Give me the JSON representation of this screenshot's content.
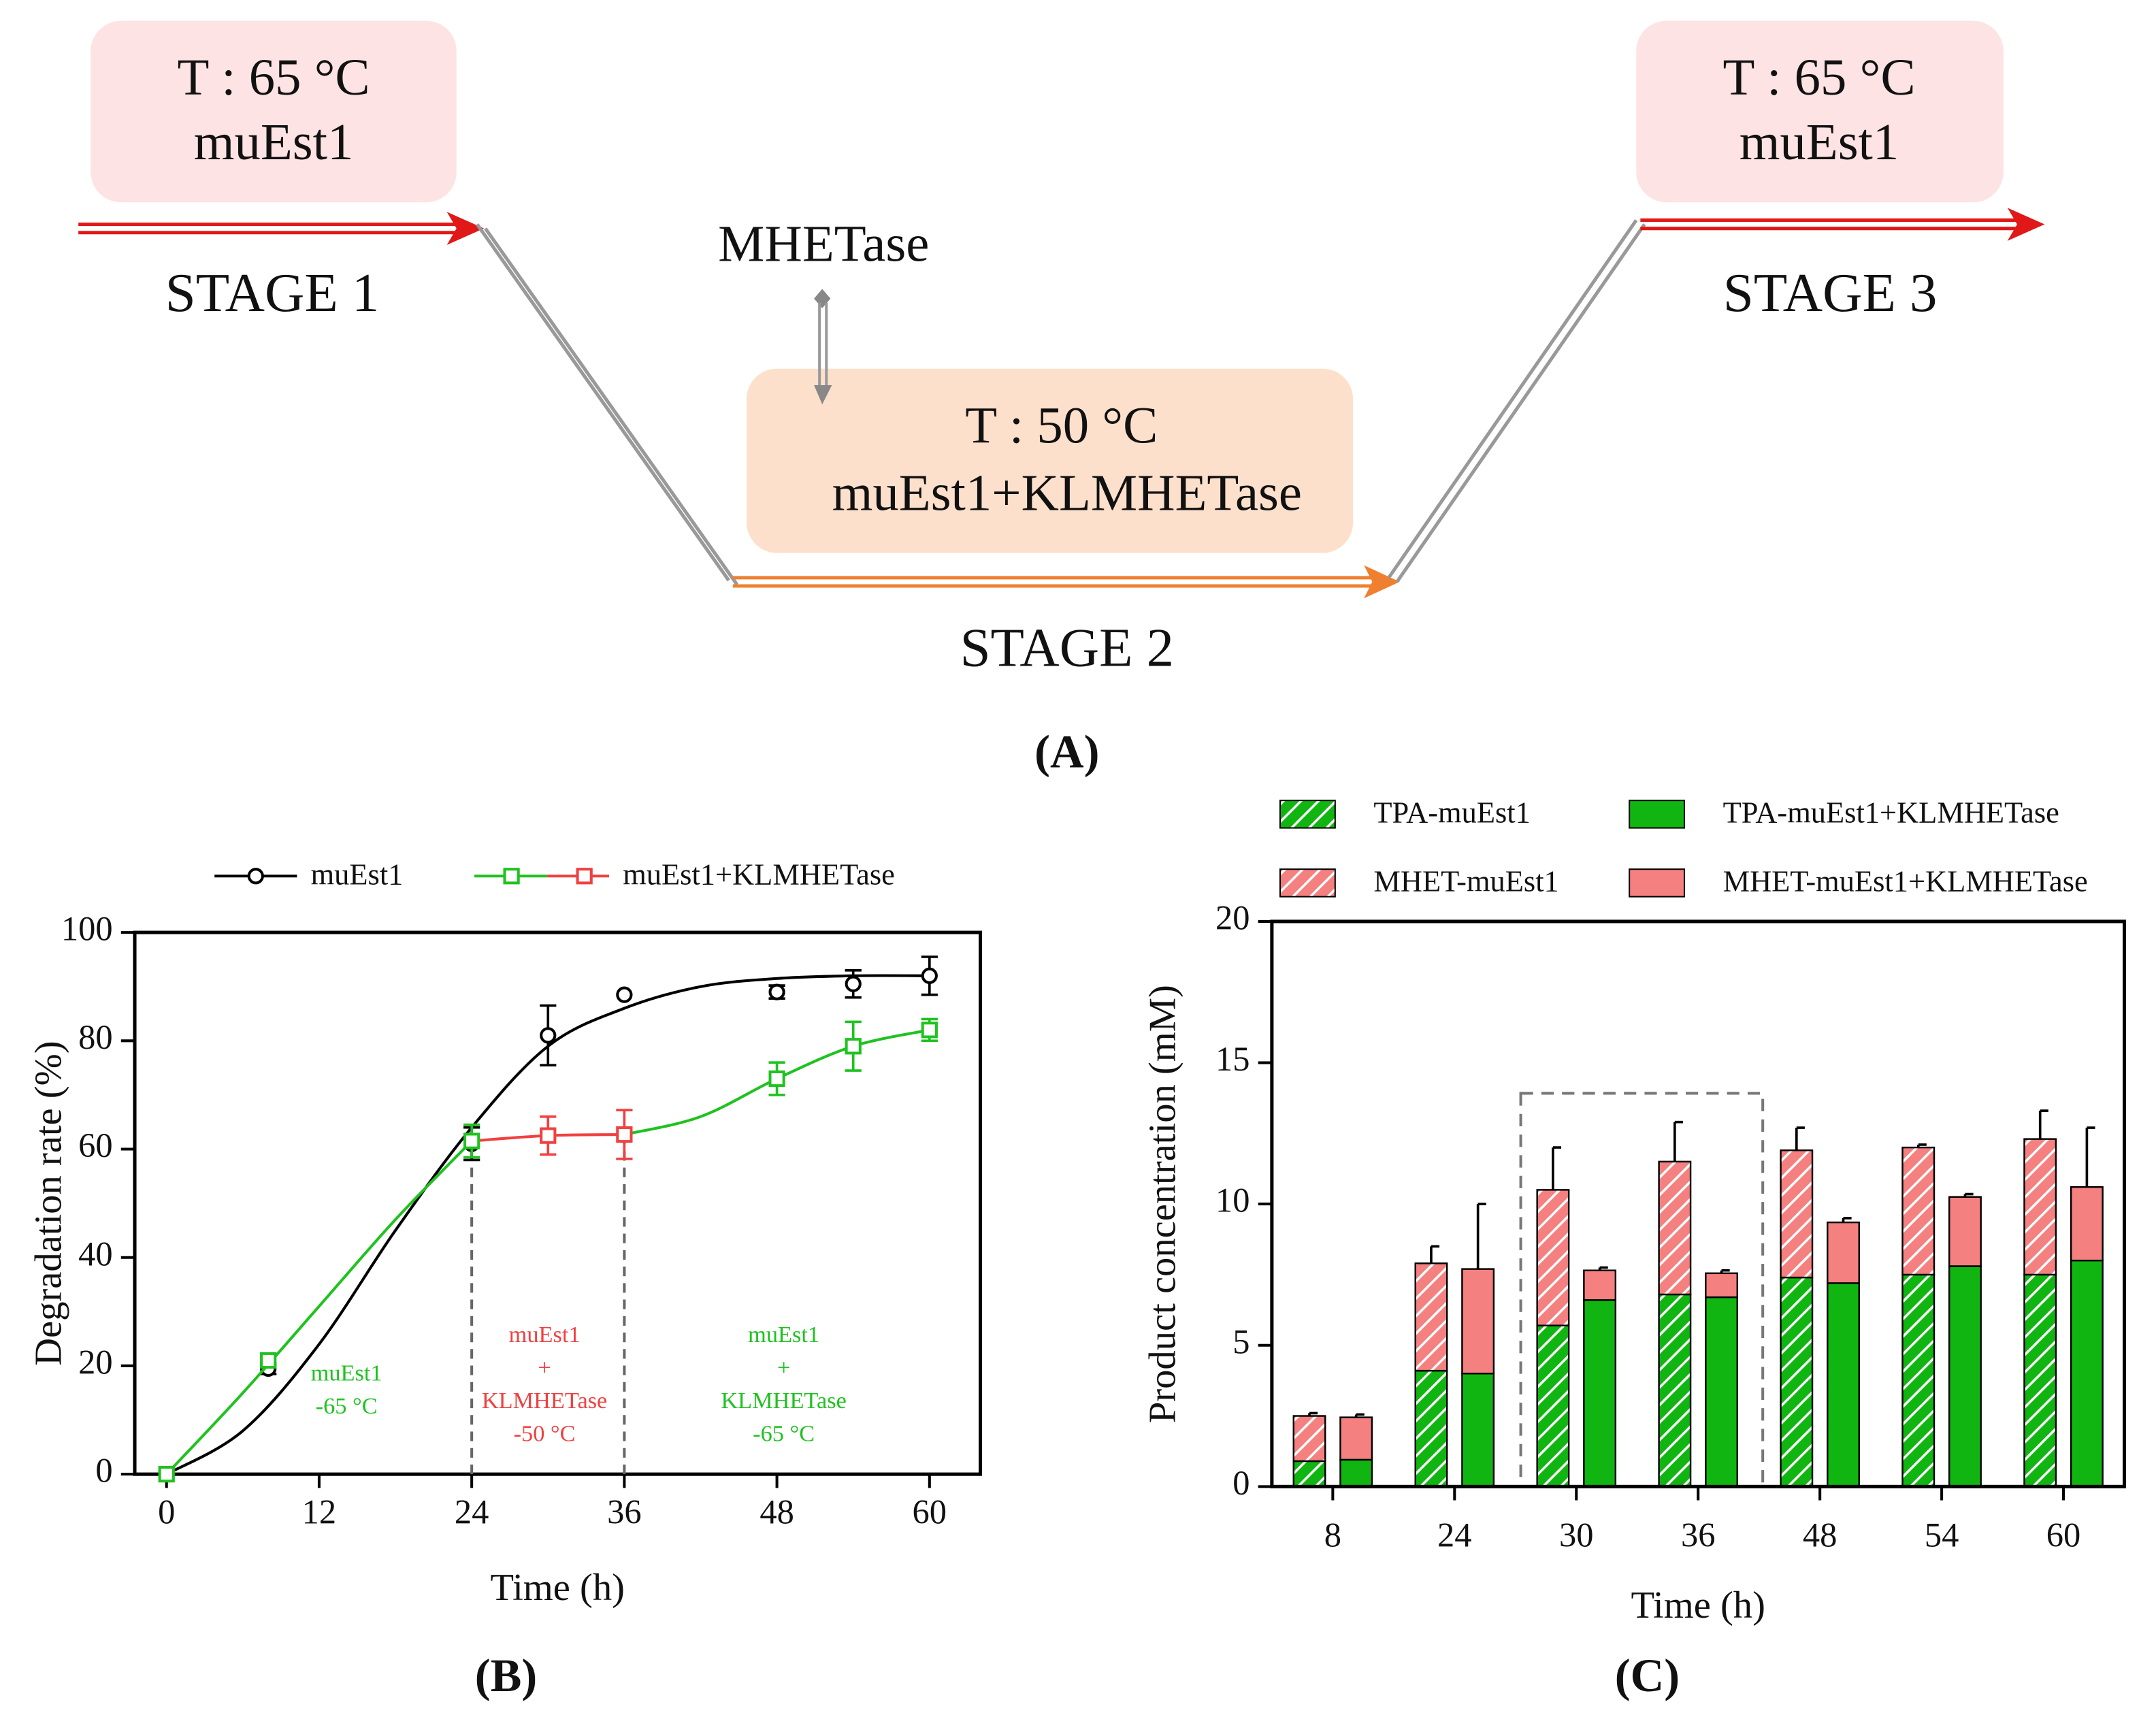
{
  "diagram": {
    "panel_label": "(A)",
    "stage1": {
      "box": [
        "T : 65 °C",
        "muEst1"
      ],
      "label": "STAGE 1"
    },
    "addition": "MHETase",
    "stage2": {
      "box": [
        "T : 50 °C",
        "muEst1+KLMHETase"
      ],
      "label": "STAGE 2"
    },
    "stage3": {
      "box": [
        "T : 65 °C",
        "muEst1"
      ],
      "label": "STAGE 3"
    }
  },
  "chart_data": [
    {
      "type": "line",
      "panel_label": "(B)",
      "xlabel": "Time (h)",
      "ylabel": "Degradation rate (%)",
      "xlim": [
        -2.5,
        64
      ],
      "ylim": [
        0,
        100
      ],
      "xticks": [
        0,
        12,
        24,
        36,
        48,
        60
      ],
      "yticks": [
        0,
        20,
        40,
        60,
        80,
        100
      ],
      "reference_lines": [
        24,
        36
      ],
      "series": [
        {
          "name": "muEst1",
          "color": "#000000",
          "marker": "circle",
          "x": [
            0,
            8,
            24,
            30,
            36,
            48,
            54,
            60
          ],
          "values": [
            0,
            19.5,
            61,
            81,
            88.5,
            89,
            90.5,
            92
          ],
          "errors": [
            0,
            1,
            3,
            5.5,
            0,
            1.2,
            2.5,
            3.5
          ],
          "fits": [
            {
              "color": "#000000",
              "x": [
                0,
                6,
                12,
                18,
                24,
                30,
                36,
                42,
                48,
                54,
                60
              ],
              "values": [
                0,
                8,
                24,
                45,
                64,
                79,
                86,
                90,
                91.5,
                92,
                92
              ]
            }
          ]
        },
        {
          "name": "muEst1+KLMHETase",
          "color": "#1fc21f",
          "marker": "square",
          "x": [
            0,
            8,
            24,
            30,
            36,
            48,
            54,
            60
          ],
          "values": [
            0,
            21,
            61.5,
            62.5,
            62.7,
            73,
            79,
            82
          ],
          "errors": [
            0,
            1,
            3,
            3.5,
            4.5,
            3,
            4.5,
            2
          ],
          "point_colors": [
            "#1fc21f",
            "#1fc21f",
            "#1fc21f",
            "#f04040",
            "#f04040",
            "#1fc21f",
            "#1fc21f",
            "#1fc21f"
          ],
          "fits": [
            {
              "color": "#1fc21f",
              "x": [
                0,
                6,
                12,
                18,
                24
              ],
              "values": [
                0,
                15,
                31,
                47,
                61.5
              ]
            },
            {
              "color": "#f04040",
              "x": [
                24,
                30,
                36
              ],
              "values": [
                61.5,
                62.5,
                62.7
              ]
            },
            {
              "color": "#1fc21f",
              "x": [
                36,
                42,
                48,
                54,
                60
              ],
              "values": [
                62.7,
                66,
                73,
                79,
                82
              ]
            }
          ]
        }
      ],
      "legend_colors": [
        "#1fc21f",
        "#f04040"
      ],
      "annotations": [
        {
          "lines": [
            "muEst1",
            "-65 °C"
          ],
          "color": "#1fc21f"
        },
        {
          "lines": [
            "muEst1",
            "+",
            "KLMHETase",
            "-50 °C"
          ],
          "color": "#f04040"
        },
        {
          "lines": [
            "muEst1",
            "+",
            "KLMHETase",
            "-65 °C"
          ],
          "color": "#1fc21f"
        }
      ]
    },
    {
      "type": "bar",
      "panel_label": "(C)",
      "xlabel": "Time (h)",
      "ylabel": "Product concentration (mM)",
      "categories": [
        "8",
        "24",
        "30",
        "36",
        "48",
        "54",
        "60"
      ],
      "ylim": [
        0,
        20
      ],
      "yticks": [
        0,
        5,
        10,
        15,
        20
      ],
      "series": [
        {
          "name": "TPA-muEst1",
          "color": "#11b511",
          "hatch": true,
          "group": 0,
          "values": [
            0.9,
            4.1,
            5.7,
            6.8,
            7.4,
            7.5,
            7.5
          ],
          "errors": [
            0.05,
            0.8,
            0.2,
            1.4,
            1.6,
            1.0,
            1.8
          ]
        },
        {
          "name": "MHET-muEst1",
          "color": "#f58080",
          "hatch": true,
          "group": 0,
          "values": [
            1.6,
            3.8,
            4.8,
            4.7,
            4.5,
            4.5,
            4.8
          ],
          "errors": [
            0.1,
            0.6,
            1.5,
            1.4,
            0.8,
            0.1,
            1.0
          ]
        },
        {
          "name": "TPA-muEst1+KLMHETase",
          "color": "#11b511",
          "hatch": false,
          "group": 1,
          "values": [
            0.95,
            4.0,
            6.6,
            6.7,
            7.2,
            7.8,
            8.0
          ],
          "errors": [
            0.05,
            1.0,
            0.2,
            0.6,
            0.6,
            0.1,
            1.4
          ]
        },
        {
          "name": "MHET-muEst1+KLMHETase",
          "color": "#f58080",
          "hatch": false,
          "group": 1,
          "values": [
            1.5,
            3.7,
            1.05,
            0.85,
            2.15,
            2.45,
            2.6
          ],
          "errors": [
            0.1,
            2.3,
            0.1,
            0.1,
            0.15,
            0.1,
            2.1
          ]
        }
      ]
    }
  ]
}
